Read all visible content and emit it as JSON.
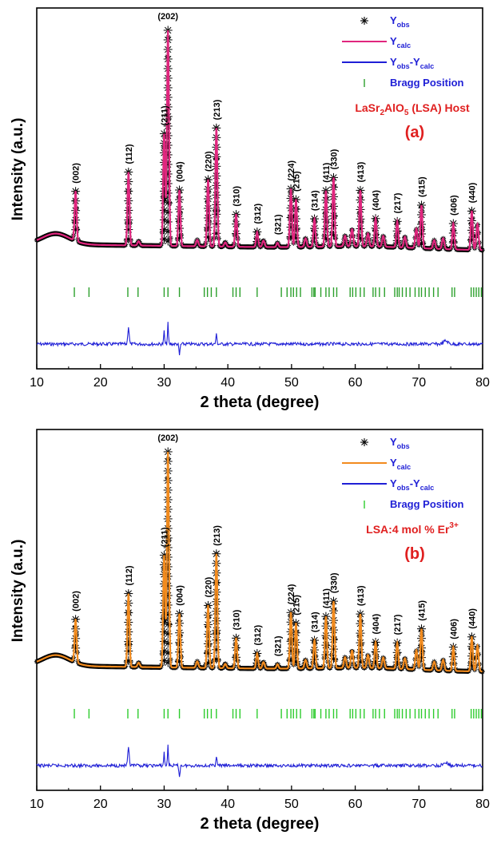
{
  "chart_data": [
    {
      "type": "line",
      "panel": "(a)",
      "sample": "LaSr2AlO5 (LSA) Host",
      "sample_parts": [
        "LaSr",
        "2",
        "AlO",
        "5",
        " (LSA) Host"
      ],
      "xlabel": "2 theta (degree)",
      "ylabel": "Intensity (a.u.)",
      "xlim": [
        10,
        80
      ],
      "x_ticks": [
        10,
        20,
        30,
        40,
        50,
        60,
        70,
        80
      ],
      "legend_position": "top-right",
      "legend": [
        {
          "base": "Y",
          "sub": "obs",
          "sub2": "",
          "color": "#000000",
          "marker": "asterisk"
        },
        {
          "base": "Y",
          "sub": "calc",
          "sub2": "",
          "color": "#e0267e",
          "marker": "line"
        },
        {
          "base": "Y",
          "sub": "obs",
          "sub2": "calc",
          "color": "#1f1fd6",
          "marker": "line"
        },
        {
          "base": "Bragg Position",
          "sub": "",
          "sub2": "",
          "color": "#2ca02c",
          "marker": "tick"
        }
      ],
      "colors": {
        "obs": "#000000",
        "calc": "#e0267e",
        "diff": "#1f1fd6",
        "bragg": "#2ca02c",
        "label": "#e02020",
        "legend_text": "#1f1fd6"
      },
      "peaks": [
        {
          "hkl": "(002)",
          "x": 16.1,
          "h": 0.23
        },
        {
          "hkl": "(112)",
          "x": 24.4,
          "h": 0.34
        },
        {
          "hkl": "(211)",
          "x": 30.0,
          "h": 0.52
        },
        {
          "hkl": "(202)",
          "x": 30.6,
          "h": 1.0
        },
        {
          "hkl": "(004)",
          "x": 32.4,
          "h": 0.26
        },
        {
          "hkl": "(220)",
          "x": 36.9,
          "h": 0.31
        },
        {
          "hkl": "(213)",
          "x": 38.2,
          "h": 0.55
        },
        {
          "hkl": "(310)",
          "x": 41.3,
          "h": 0.15
        },
        {
          "hkl": "(312)",
          "x": 44.6,
          "h": 0.07
        },
        {
          "hkl": "(321)",
          "x": 47.8,
          "h": 0.02
        },
        {
          "hkl": "(224)",
          "x": 49.9,
          "h": 0.27
        },
        {
          "hkl": "(215)",
          "x": 50.7,
          "h": 0.22
        },
        {
          "hkl": "(314)",
          "x": 53.6,
          "h": 0.13
        },
        {
          "hkl": "(411)",
          "x": 55.4,
          "h": 0.26
        },
        {
          "hkl": "(330)",
          "x": 56.6,
          "h": 0.32
        },
        {
          "hkl": "(413)",
          "x": 60.8,
          "h": 0.26
        },
        {
          "hkl": "(404)",
          "x": 63.2,
          "h": 0.13
        },
        {
          "hkl": "(217)",
          "x": 66.6,
          "h": 0.12
        },
        {
          "hkl": "(415)",
          "x": 70.4,
          "h": 0.2
        },
        {
          "hkl": "(406)",
          "x": 75.4,
          "h": 0.12
        },
        {
          "hkl": "(440)",
          "x": 78.3,
          "h": 0.18
        }
      ],
      "bragg_positions": [
        15.9,
        18.2,
        24.3,
        25.9,
        30.0,
        30.6,
        32.4,
        36.3,
        36.8,
        37.4,
        38.2,
        40.8,
        41.3,
        41.9,
        44.6,
        48.4,
        49.3,
        49.9,
        50.3,
        50.8,
        51.4,
        53.2,
        53.5,
        53.7,
        54.6,
        55.4,
        55.9,
        56.6,
        57.1,
        59.2,
        59.6,
        60.1,
        60.8,
        61.4,
        62.8,
        63.2,
        63.8,
        64.6,
        66.2,
        66.6,
        66.9,
        67.4,
        68.0,
        68.6,
        69.4,
        70.0,
        70.4,
        71.0,
        71.6,
        72.3,
        73.0,
        75.2,
        75.6,
        78.2,
        78.6,
        79.0,
        79.4,
        79.8
      ]
    },
    {
      "type": "line",
      "panel": "(b)",
      "sample": "LSA:4 mol % Er3+",
      "sample_parts": [
        "LSA:4 mol % Er",
        "3+"
      ],
      "xlabel": "2 theta (degree)",
      "ylabel": "Intensity (a.u.)",
      "xlim": [
        10,
        80
      ],
      "x_ticks": [
        10,
        20,
        30,
        40,
        50,
        60,
        70,
        80
      ],
      "legend_position": "top-right",
      "legend": [
        {
          "base": "Y",
          "sub": "obs",
          "sub2": "",
          "color": "#000000",
          "marker": "asterisk"
        },
        {
          "base": "Y",
          "sub": "calc",
          "sub2": "",
          "color": "#f28b1e",
          "marker": "line"
        },
        {
          "base": "Y",
          "sub": "obs",
          "sub2": "calc",
          "color": "#1f1fd6",
          "marker": "line"
        },
        {
          "base": "Bragg Position",
          "sub": "",
          "sub2": "",
          "color": "#2ecc2e",
          "marker": "tick"
        }
      ],
      "colors": {
        "obs": "#000000",
        "calc": "#f28b1e",
        "diff": "#1f1fd6",
        "bragg": "#2ecc2e",
        "label": "#e02020",
        "legend_text": "#1f1fd6"
      },
      "peaks": [
        {
          "hkl": "(002)",
          "x": 16.1,
          "h": 0.2
        },
        {
          "hkl": "(112)",
          "x": 24.4,
          "h": 0.34
        },
        {
          "hkl": "(211)",
          "x": 30.0,
          "h": 0.52
        },
        {
          "hkl": "(202)",
          "x": 30.6,
          "h": 1.0
        },
        {
          "hkl": "(004)",
          "x": 32.4,
          "h": 0.25
        },
        {
          "hkl": "(220)",
          "x": 36.9,
          "h": 0.29
        },
        {
          "hkl": "(213)",
          "x": 38.2,
          "h": 0.53
        },
        {
          "hkl": "(310)",
          "x": 41.3,
          "h": 0.14
        },
        {
          "hkl": "(312)",
          "x": 44.6,
          "h": 0.07
        },
        {
          "hkl": "(321)",
          "x": 47.8,
          "h": 0.02
        },
        {
          "hkl": "(224)",
          "x": 49.9,
          "h": 0.26
        },
        {
          "hkl": "(215)",
          "x": 50.7,
          "h": 0.21
        },
        {
          "hkl": "(314)",
          "x": 53.6,
          "h": 0.13
        },
        {
          "hkl": "(411)",
          "x": 55.4,
          "h": 0.24
        },
        {
          "hkl": "(330)",
          "x": 56.6,
          "h": 0.31
        },
        {
          "hkl": "(413)",
          "x": 60.8,
          "h": 0.25
        },
        {
          "hkl": "(404)",
          "x": 63.2,
          "h": 0.12
        },
        {
          "hkl": "(217)",
          "x": 66.6,
          "h": 0.12
        },
        {
          "hkl": "(415)",
          "x": 70.4,
          "h": 0.19
        },
        {
          "hkl": "(406)",
          "x": 75.4,
          "h": 0.11
        },
        {
          "hkl": "(440)",
          "x": 78.3,
          "h": 0.16
        }
      ],
      "bragg_positions": [
        15.9,
        18.2,
        24.3,
        25.9,
        30.0,
        30.6,
        32.4,
        36.3,
        36.8,
        37.4,
        38.2,
        40.8,
        41.3,
        41.9,
        44.6,
        48.4,
        49.3,
        49.9,
        50.3,
        50.8,
        51.4,
        53.2,
        53.5,
        53.7,
        54.6,
        55.4,
        55.9,
        56.6,
        57.1,
        59.2,
        59.6,
        60.1,
        60.8,
        61.4,
        62.8,
        63.2,
        63.8,
        64.6,
        66.2,
        66.6,
        66.9,
        67.4,
        68.0,
        68.6,
        69.4,
        70.0,
        70.4,
        71.0,
        71.6,
        72.3,
        73.0,
        75.2,
        75.6,
        78.2,
        78.6,
        79.0,
        79.4,
        79.8
      ]
    }
  ]
}
